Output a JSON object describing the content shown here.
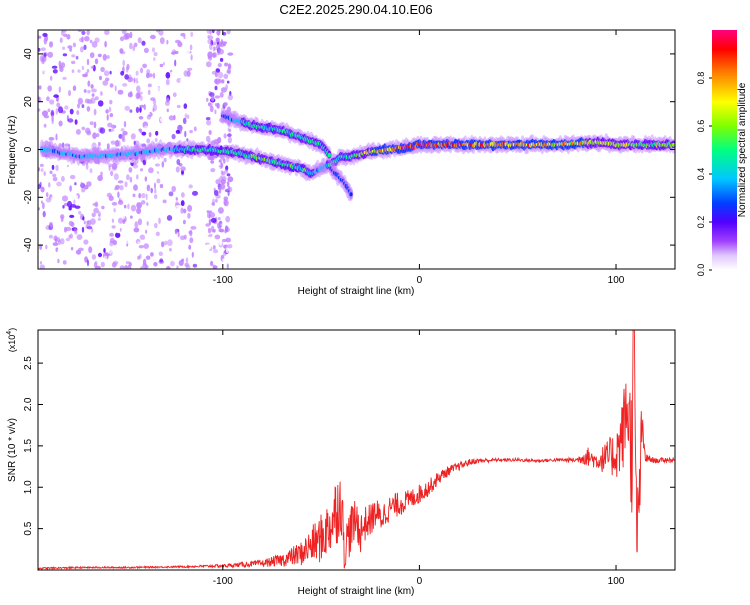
{
  "page_title": "C2E2.2025.290.04.10.E06",
  "chart_data": [
    {
      "type": "heatmap",
      "title": "C2E2.2025.290.04.10.E06",
      "xlabel": "Height of straight line (km)",
      "ylabel": "Frequency (Hz)",
      "xlim": [
        -194,
        130
      ],
      "ylim": [
        -50,
        50
      ],
      "xticks": [
        -100,
        0,
        100
      ],
      "yticks": [
        -40,
        -20,
        0,
        20,
        40
      ],
      "grid": false,
      "colorbar": {
        "label": "Normalized spectral amplitude",
        "range": [
          0.0,
          1.0
        ],
        "ticks": [
          "0.0",
          "0.2",
          "0.4",
          "0.6",
          "0.8"
        ],
        "tick_values": [
          0.0,
          0.2,
          0.4,
          0.6,
          0.8
        ],
        "colors": [
          "#ffffff",
          "#c080ff",
          "#6000ff",
          "#0030ff",
          "#00c0ff",
          "#00ff80",
          "#80ff00",
          "#ffff00",
          "#ff8000",
          "#ff0000",
          "#ff0080"
        ]
      },
      "traces": [
        {
          "name": "main-trace",
          "points": [
            [
              -192,
              0
            ],
            [
              -170,
              -3
            ],
            [
              -150,
              -2
            ],
            [
              -130,
              0
            ],
            [
              -110,
              0
            ],
            [
              -95,
              -1
            ],
            [
              -80,
              -4
            ],
            [
              -70,
              -6
            ],
            [
              -60,
              -8
            ],
            [
              -55,
              -10
            ],
            [
              -50,
              -8
            ],
            [
              -45,
              -6
            ],
            [
              -40,
              -3
            ],
            [
              -35,
              -3
            ],
            [
              -25,
              -1
            ],
            [
              -15,
              0
            ],
            [
              -5,
              1
            ],
            [
              0,
              2
            ],
            [
              10,
              2
            ],
            [
              30,
              2
            ],
            [
              50,
              2
            ],
            [
              70,
              2
            ],
            [
              90,
              3
            ],
            [
              100,
              2
            ],
            [
              110,
              2
            ],
            [
              120,
              2
            ],
            [
              130,
              2
            ]
          ],
          "amplitudes": [
            0.4,
            0.4,
            0.4,
            0.4,
            0.5,
            0.5,
            0.55,
            0.5,
            0.55,
            0.45,
            0.4,
            0.45,
            0.5,
            0.5,
            0.7,
            0.85,
            0.9,
            0.95,
            0.9,
            0.85,
            0.8,
            0.75,
            0.7,
            0.65,
            0.6,
            0.6,
            0.6
          ]
        },
        {
          "name": "upper-branch",
          "points": [
            [
              -100,
              14
            ],
            [
              -85,
              10
            ],
            [
              -70,
              8
            ],
            [
              -60,
              5
            ],
            [
              -50,
              2
            ],
            [
              -45,
              -3
            ]
          ],
          "amplitudes": [
            0.3,
            0.5,
            0.5,
            0.5,
            0.5,
            0.5
          ]
        },
        {
          "name": "lower-branch",
          "points": [
            [
              -45,
              -8
            ],
            [
              -38,
              -14
            ],
            [
              -34,
              -20
            ]
          ],
          "amplitudes": [
            0.3,
            0.35,
            0.3
          ]
        }
      ]
    },
    {
      "type": "line",
      "xlabel": "Height of straight line (km)",
      "ylabel": "SNR (10 * v/v)",
      "y_multiplier": "(x10",
      "y_multiplier_exp": "4",
      "y_multiplier_close": ")",
      "xlim": [
        -194,
        130
      ],
      "ylim": [
        0.0,
        2.9
      ],
      "xticks": [
        -100,
        0,
        100
      ],
      "yticks": [
        0.5,
        1.0,
        1.5,
        2.0,
        2.5
      ],
      "ytick_labels": [
        "0.5",
        "1.0",
        "1.5",
        "2.0",
        "2.5"
      ],
      "grid": false,
      "series": [
        {
          "name": "SNR",
          "color": "#ee2222",
          "x": [
            -194,
            -170,
            -150,
            -120,
            -100,
            -80,
            -70,
            -60,
            -55,
            -50,
            -45,
            -42,
            -40,
            -38,
            -35,
            -32,
            -30,
            -28,
            -25,
            -22,
            -20,
            -15,
            -10,
            -5,
            0,
            5,
            10,
            15,
            20,
            25,
            30,
            40,
            50,
            60,
            70,
            80,
            85,
            90,
            95,
            100,
            103,
            106,
            108,
            109,
            110,
            111,
            113,
            115,
            120,
            125,
            130
          ],
          "values": [
            0.02,
            0.03,
            0.03,
            0.04,
            0.05,
            0.08,
            0.12,
            0.2,
            0.3,
            0.38,
            0.55,
            0.75,
            0.85,
            0.25,
            0.5,
            0.6,
            0.45,
            0.55,
            0.6,
            0.7,
            0.62,
            0.75,
            0.8,
            0.85,
            0.92,
            1.0,
            1.12,
            1.2,
            1.25,
            1.3,
            1.32,
            1.33,
            1.33,
            1.32,
            1.33,
            1.33,
            1.38,
            1.32,
            1.35,
            1.4,
            1.6,
            2.0,
            1.4,
            2.8,
            1.1,
            0.3,
            1.7,
            1.35,
            1.32,
            1.33,
            1.33
          ],
          "noise": [
            0.01,
            0.01,
            0.01,
            0.01,
            0.02,
            0.04,
            0.08,
            0.15,
            0.22,
            0.3,
            0.35,
            0.45,
            0.4,
            0.3,
            0.3,
            0.25,
            0.25,
            0.22,
            0.2,
            0.18,
            0.18,
            0.15,
            0.15,
            0.12,
            0.12,
            0.1,
            0.08,
            0.06,
            0.05,
            0.04,
            0.03,
            0.02,
            0.02,
            0.02,
            0.02,
            0.03,
            0.12,
            0.1,
            0.2,
            0.3,
            0.45,
            0.6,
            0.8,
            0.9,
            0.9,
            0.8,
            0.3,
            0.06,
            0.03,
            0.03,
            0.03
          ]
        }
      ]
    }
  ]
}
